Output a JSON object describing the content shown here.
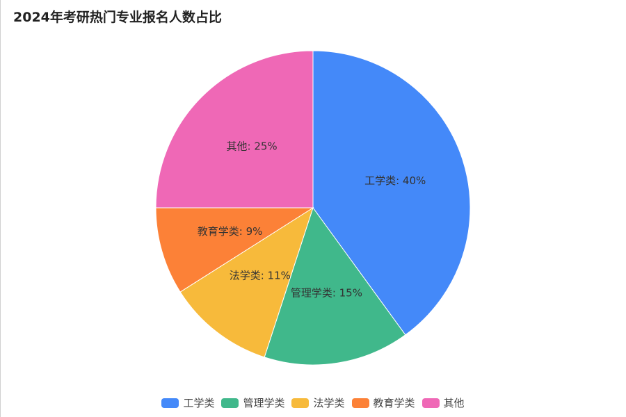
{
  "chart_data": {
    "type": "pie",
    "title": "2024年考研热门专业报名人数占比",
    "slices": [
      {
        "label": "工学类",
        "value": 40,
        "color": "#4489F9"
      },
      {
        "label": "管理学类",
        "value": 15,
        "color": "#40B88B"
      },
      {
        "label": "法学类",
        "value": 11,
        "color": "#F7BA3B"
      },
      {
        "label": "教育学类",
        "value": 9,
        "color": "#FC8137"
      },
      {
        "label": "其他",
        "value": 25,
        "color": "#EF68B6"
      }
    ],
    "unit": "%",
    "legend_position": "bottom"
  }
}
